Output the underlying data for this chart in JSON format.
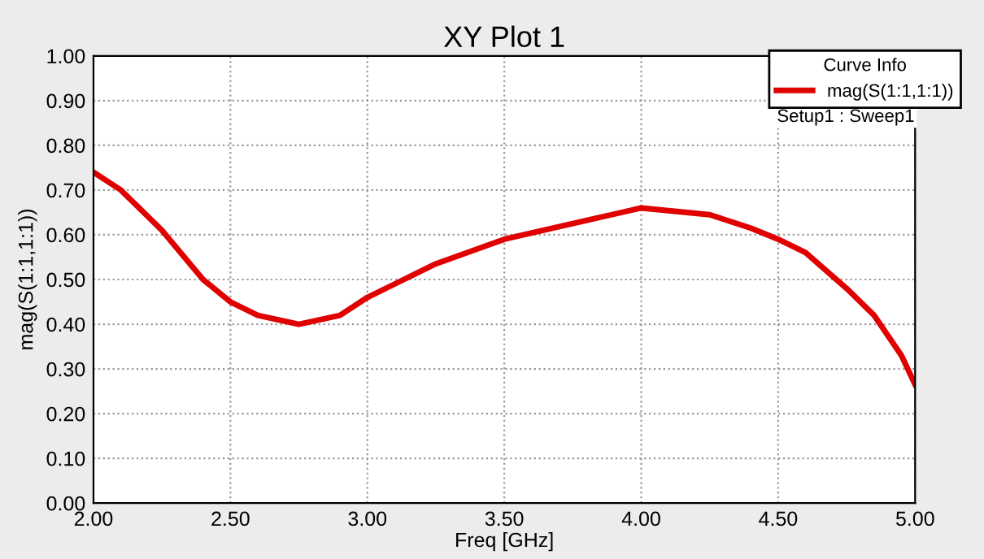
{
  "chart_data": {
    "type": "line",
    "title": "XY Plot 1",
    "xlabel": "Freq [GHz]",
    "ylabel": "mag(S(1:1,1:1))",
    "legend_title": "Curve Info",
    "annotations": [
      "Setup1 : Sweep1"
    ],
    "series": [
      {
        "name": "mag(S(1:1,1:1))",
        "color": "#e00000",
        "x": [
          2.0,
          2.1,
          2.25,
          2.4,
          2.5,
          2.6,
          2.75,
          2.9,
          3.0,
          3.1,
          3.25,
          3.5,
          3.75,
          4.0,
          4.25,
          4.4,
          4.5,
          4.6,
          4.75,
          4.85,
          4.95,
          5.0
        ],
        "values": [
          0.74,
          0.7,
          0.61,
          0.5,
          0.45,
          0.42,
          0.4,
          0.42,
          0.46,
          0.49,
          0.535,
          0.59,
          0.625,
          0.66,
          0.645,
          0.615,
          0.59,
          0.56,
          0.48,
          0.42,
          0.33,
          0.265
        ]
      }
    ],
    "xlim": [
      2.0,
      5.0
    ],
    "xticks": [
      {
        "value": 2.0,
        "label": "2.00"
      },
      {
        "value": 2.5,
        "label": "2.50"
      },
      {
        "value": 3.0,
        "label": "3.00"
      },
      {
        "value": 3.5,
        "label": "3.50"
      },
      {
        "value": 4.0,
        "label": "4.00"
      },
      {
        "value": 4.5,
        "label": "4.50"
      },
      {
        "value": 5.0,
        "label": "5.00"
      }
    ],
    "ylim": [
      0,
      1
    ],
    "yticks": [
      {
        "value": 0,
        "label": "0.00"
      },
      {
        "value": 0.1,
        "label": "0.10"
      },
      {
        "value": 0.2,
        "label": "0.20"
      },
      {
        "value": 0.3,
        "label": "0.30"
      },
      {
        "value": 0.4,
        "label": "0.40"
      },
      {
        "value": 0.5,
        "label": "0.50"
      },
      {
        "value": 0.6,
        "label": "0.60"
      },
      {
        "value": 0.7,
        "label": "0.70"
      },
      {
        "value": 0.8,
        "label": "0.80"
      },
      {
        "value": 0.9,
        "label": "0.90"
      },
      {
        "value": 1.0,
        "label": "1.00"
      }
    ],
    "grid": true,
    "legend": "top right",
    "marker": "none",
    "line_style": "solid"
  }
}
